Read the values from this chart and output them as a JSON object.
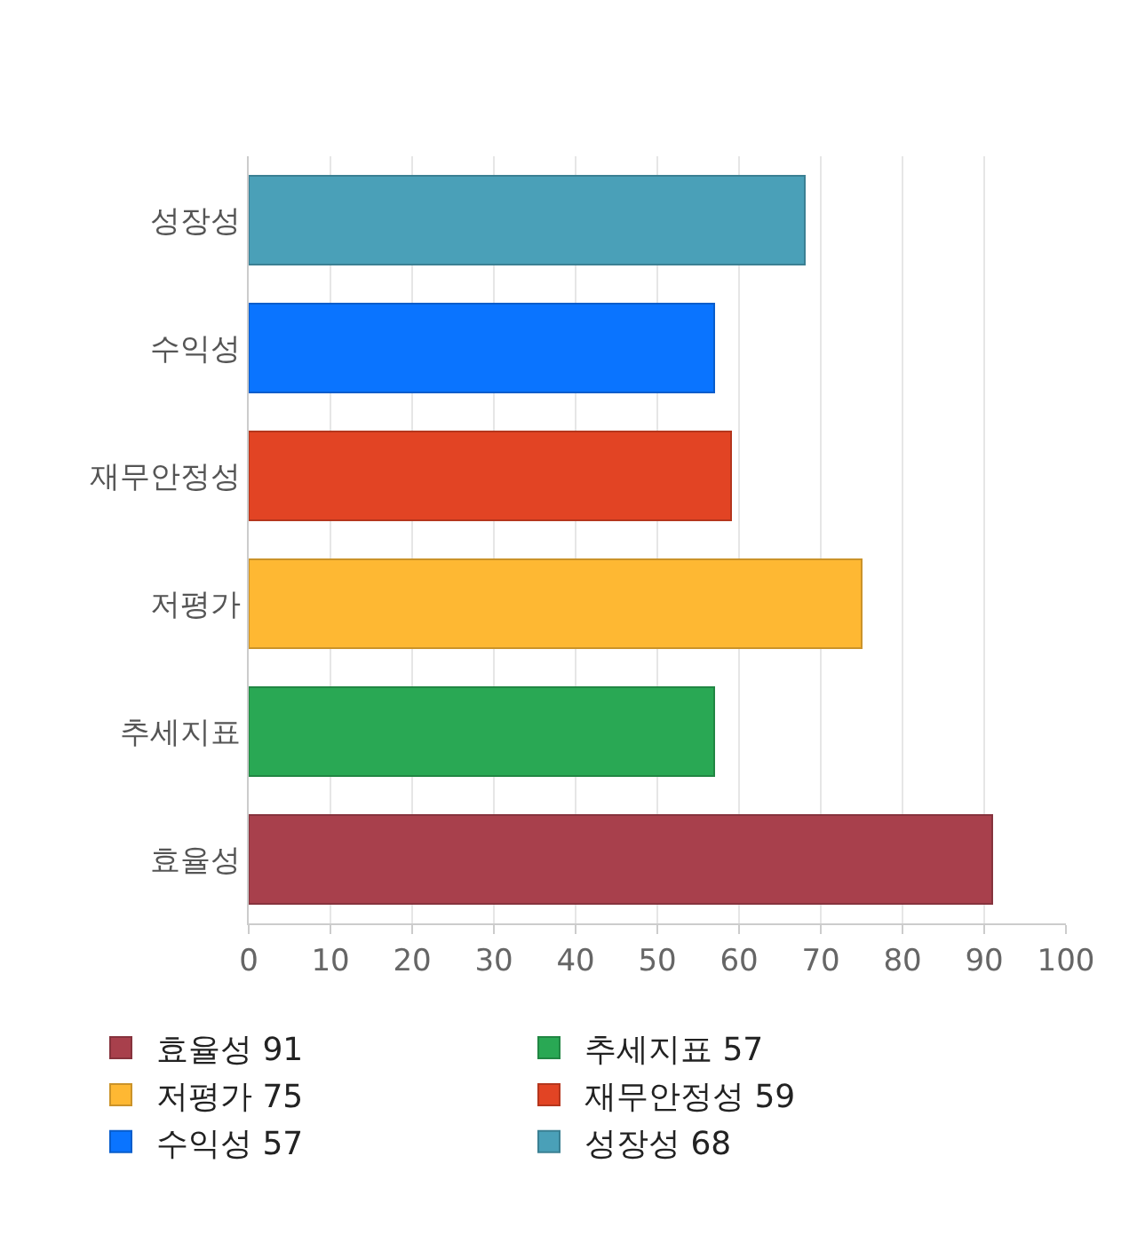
{
  "chart_data": {
    "type": "bar",
    "orientation": "horizontal",
    "stacked": true,
    "categories": [
      "성장성",
      "수익성",
      "재무안정성",
      "저평가",
      "추세지표",
      "효율성"
    ],
    "series": [
      {
        "name": "성장성 68",
        "color": "#4aa0b8",
        "values": [
          68,
          null,
          null,
          null,
          null,
          null
        ]
      },
      {
        "name": "수익성 57",
        "color": "#0a74ff",
        "values": [
          null,
          57,
          null,
          null,
          null,
          null
        ]
      },
      {
        "name": "재무안정성 59",
        "color": "#e24424",
        "values": [
          null,
          null,
          59,
          null,
          null,
          null
        ]
      },
      {
        "name": "저평가 75",
        "color": "#feb833",
        "values": [
          null,
          null,
          null,
          75,
          null,
          null
        ]
      },
      {
        "name": "추세지표 57",
        "color": "#29a854",
        "values": [
          null,
          null,
          null,
          null,
          57,
          null
        ]
      },
      {
        "name": "효율성 91",
        "color": "#a8404c",
        "values": [
          null,
          null,
          null,
          null,
          null,
          91
        ]
      }
    ],
    "xlim": [
      0,
      100
    ],
    "xticks": [
      0,
      10,
      20,
      30,
      40,
      50,
      60,
      70,
      80,
      90,
      100
    ],
    "grid": "x",
    "legend": "bottom"
  }
}
